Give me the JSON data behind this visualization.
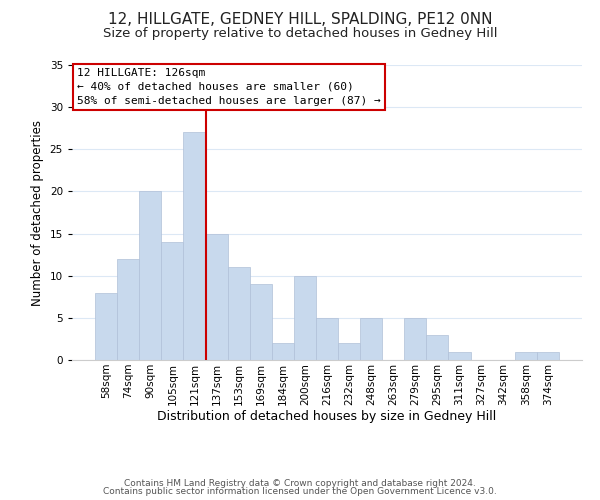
{
  "title": "12, HILLGATE, GEDNEY HILL, SPALDING, PE12 0NN",
  "subtitle": "Size of property relative to detached houses in Gedney Hill",
  "xlabel": "Distribution of detached houses by size in Gedney Hill",
  "ylabel": "Number of detached properties",
  "bar_labels": [
    "58sqm",
    "74sqm",
    "90sqm",
    "105sqm",
    "121sqm",
    "137sqm",
    "153sqm",
    "169sqm",
    "184sqm",
    "200sqm",
    "216sqm",
    "232sqm",
    "248sqm",
    "263sqm",
    "279sqm",
    "295sqm",
    "311sqm",
    "327sqm",
    "342sqm",
    "358sqm",
    "374sqm"
  ],
  "bar_values": [
    8,
    12,
    20,
    14,
    27,
    15,
    11,
    9,
    2,
    10,
    5,
    2,
    5,
    0,
    5,
    3,
    1,
    0,
    0,
    1,
    1
  ],
  "bar_color": "#c8d9ed",
  "bar_edge_color": "#b0c0d8",
  "vline_color": "#cc0000",
  "annotation_title": "12 HILLGATE: 126sqm",
  "annotation_line1": "← 40% of detached houses are smaller (60)",
  "annotation_line2": "58% of semi-detached houses are larger (87) →",
  "annotation_box_color": "#ffffff",
  "annotation_box_edge": "#cc0000",
  "footer_line1": "Contains HM Land Registry data © Crown copyright and database right 2024.",
  "footer_line2": "Contains public sector information licensed under the Open Government Licence v3.0.",
  "bg_color": "#ffffff",
  "grid_color": "#dce8f5",
  "title_fontsize": 11,
  "subtitle_fontsize": 9.5,
  "xlabel_fontsize": 9,
  "ylabel_fontsize": 8.5,
  "tick_fontsize": 7.5,
  "annotation_fontsize": 8,
  "footer_fontsize": 6.5,
  "ylim": [
    0,
    35
  ],
  "yticks": [
    0,
    5,
    10,
    15,
    20,
    25,
    30,
    35
  ],
  "vline_index": 4
}
